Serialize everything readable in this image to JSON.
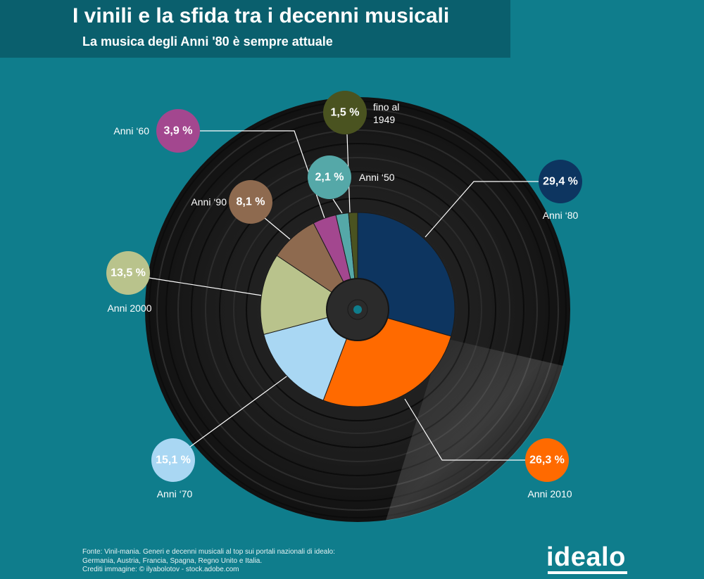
{
  "header": {
    "title": "I vinili e la sfida tra i decenni musicali",
    "subtitle": "La musica degli Anni '80 è sempre attuale"
  },
  "chart_data": {
    "type": "pie",
    "title": "I vinili e la sfida tra i decenni musicali",
    "subtitle": "La musica degli Anni '80 è sempre attuale",
    "slices": [
      {
        "label": "Anni ‘80",
        "value": 29.4,
        "value_label": "29,4 %",
        "color": "#0d3560"
      },
      {
        "label": "Anni 2010",
        "value": 26.3,
        "value_label": "26,3 %",
        "color": "#ff6a00"
      },
      {
        "label": "Anni ‘70",
        "value": 15.1,
        "value_label": "15,1 %",
        "color": "#a9d7f3"
      },
      {
        "label": "Anni 2000",
        "value": 13.5,
        "value_label": "13,5 %",
        "color": "#b9c38c"
      },
      {
        "label": "Anni ‘90",
        "value": 8.1,
        "value_label": "8,1 %",
        "color": "#8e6a4f"
      },
      {
        "label": "Anni ‘60",
        "value": 3.9,
        "value_label": "3,9 %",
        "color": "#a3478f"
      },
      {
        "label": "Anni ‘50",
        "value": 2.1,
        "value_label": "2,1 %",
        "color": "#55a8a8"
      },
      {
        "label": "fino al 1949",
        "value": 1.5,
        "value_label": "1,5 %",
        "color": "#4a5320"
      }
    ]
  },
  "footer": {
    "line1": "Fonte: Vinil-mania. Generi e decenni musicali al top sui portali nazionali di idealo:",
    "line2": "Germania, Austria, Francia, Spagna, Regno Unito e Italia.",
    "line3": "Crediti immagine: © ilyabolotov - stock.adobe.com"
  },
  "logo": {
    "text": "idealo"
  }
}
